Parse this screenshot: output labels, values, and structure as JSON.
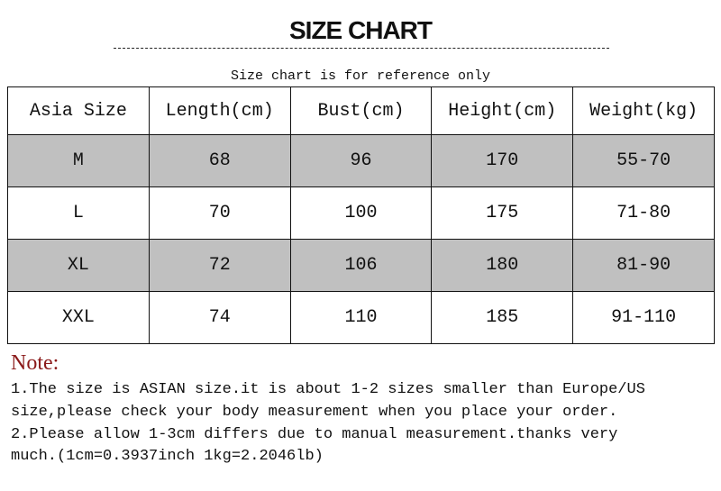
{
  "title": "SIZE CHART",
  "subtitle": "Size chart is for reference only",
  "table": {
    "headers": [
      "Asia Size",
      "Length(cm)",
      "Bust(cm)",
      "Height(cm)",
      "Weight(kg)"
    ],
    "rows": [
      [
        "M",
        "68",
        "96",
        "170",
        "55-70"
      ],
      [
        "L",
        "70",
        "100",
        "175",
        "71-80"
      ],
      [
        "XL",
        "72",
        "106",
        "180",
        "81-90"
      ],
      [
        "XXL",
        "74",
        "110",
        "185",
        "91-110"
      ]
    ],
    "shaded_row_color": "#c0c0c0"
  },
  "note": {
    "label": "Note:",
    "label_color": "#8b1a1a",
    "lines": [
      "1.The size is ASIAN size.it is about 1-2 sizes smaller than Europe/US",
      "size,please check your body measurement when you place your order.",
      "2.Please allow 1-3cm differs due to manual measurement.thanks very",
      "much.(1cm=0.3937inch 1kg=2.2046lb)"
    ]
  }
}
